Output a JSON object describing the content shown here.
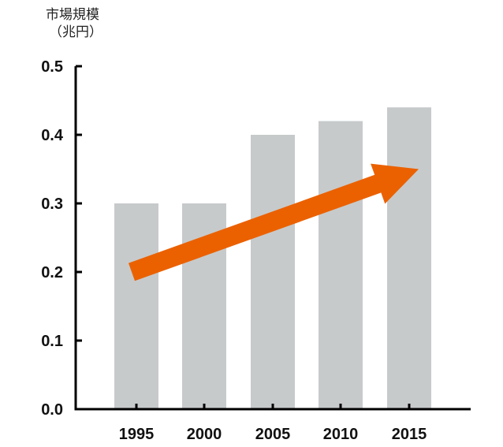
{
  "chart_data": {
    "type": "bar",
    "ylabel_lines": [
      "市場規模",
      "（兆円）"
    ],
    "categories": [
      "1995",
      "2000",
      "2005",
      "2010",
      "2015"
    ],
    "values": [
      0.3,
      0.3,
      0.4,
      0.42,
      0.44
    ],
    "ylim": [
      0,
      0.5
    ],
    "yticks": [
      "0.0",
      "0.1",
      "0.2",
      "0.3",
      "0.4",
      "0.5"
    ],
    "grid": false,
    "annotations": [
      {
        "type": "trend-arrow",
        "from": {
          "x": "1995",
          "y": 0.2
        },
        "to": {
          "x": "2015",
          "y": 0.35
        }
      }
    ],
    "colors": {
      "bar": "#c7cacb",
      "arrow": "#eb6100",
      "axis": "#000000"
    }
  }
}
